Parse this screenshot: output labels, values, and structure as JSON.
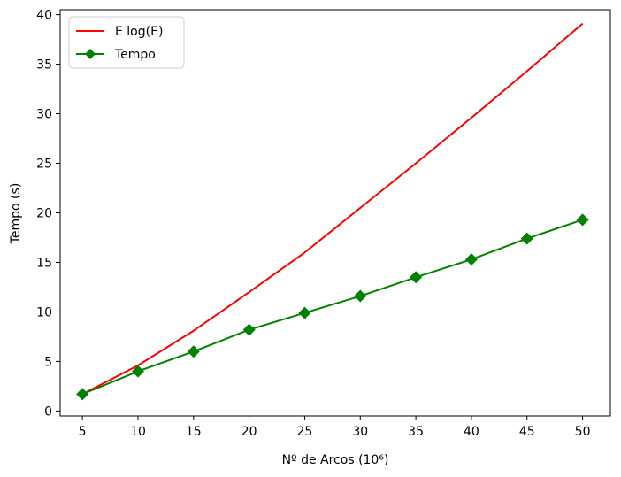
{
  "chart_data": {
    "type": "line",
    "xlabel": "Nº de Arcos (10⁶)",
    "ylabel": "Tempo (s)",
    "xlim": [
      3,
      52.5
    ],
    "ylim": [
      -0.5,
      40.5
    ],
    "x_ticks": [
      5,
      10,
      15,
      20,
      25,
      30,
      35,
      40,
      45,
      50
    ],
    "y_ticks": [
      0,
      5,
      10,
      15,
      20,
      25,
      30,
      35,
      40
    ],
    "grid": false,
    "legend_position": "top-left",
    "series": [
      {
        "name": "E log(E)",
        "color": "#ff0000",
        "marker": "none",
        "x": [
          5,
          10,
          15,
          20,
          25,
          30,
          35,
          40,
          45,
          50
        ],
        "values": [
          1.7,
          4.6,
          8.1,
          12.0,
          16.0,
          20.5,
          25.0,
          29.6,
          34.3,
          39.1
        ]
      },
      {
        "name": "Tempo",
        "color": "#008000",
        "marker": "diamond",
        "x": [
          5,
          10,
          15,
          20,
          25,
          30,
          35,
          40,
          45,
          50
        ],
        "values": [
          1.7,
          4.0,
          6.0,
          8.2,
          9.9,
          11.6,
          13.5,
          15.3,
          17.4,
          19.3
        ]
      }
    ]
  }
}
